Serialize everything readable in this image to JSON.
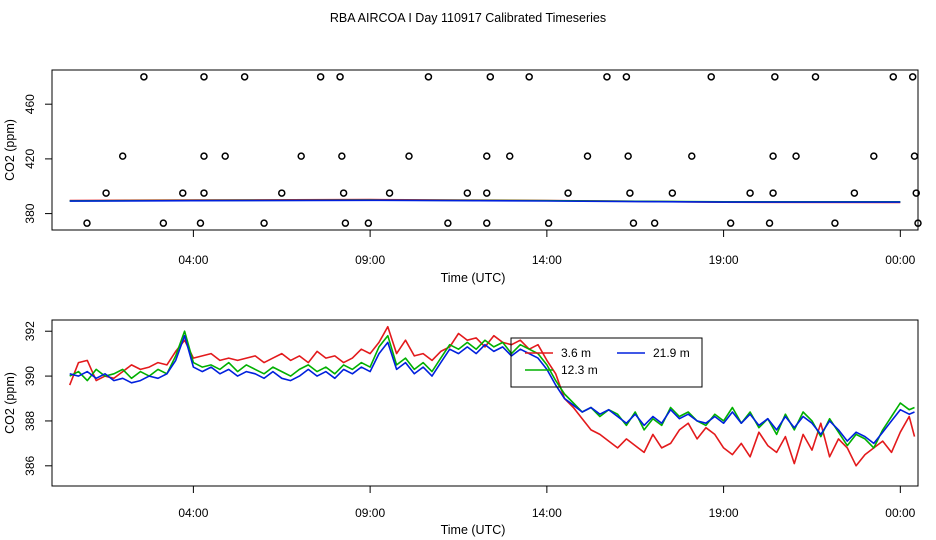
{
  "title": "RBA AIRCOA I  Day 110917  Calibrated Timeseries",
  "chart_data": [
    {
      "type": "scatter+line",
      "name": "upper-panel",
      "xlabel": "Time (UTC)",
      "ylabel": "CO2 (ppm)",
      "xlim": [
        0.0,
        24.5
      ],
      "ylim": [
        368,
        485
      ],
      "x_ticks": [
        {
          "value": 4,
          "label": "04:00"
        },
        {
          "value": 9,
          "label": "09:00"
        },
        {
          "value": 14,
          "label": "14:00"
        },
        {
          "value": 19,
          "label": "19:00"
        },
        {
          "value": 24,
          "label": "00:00"
        }
      ],
      "y_ticks": [
        {
          "value": 380,
          "label": "380"
        },
        {
          "value": 420,
          "label": "420"
        },
        {
          "value": 460,
          "label": "460"
        }
      ],
      "points": [
        {
          "x": 0.99,
          "y": 373
        },
        {
          "x": 1.53,
          "y": 395
        },
        {
          "x": 2.0,
          "y": 422
        },
        {
          "x": 2.6,
          "y": 480
        },
        {
          "x": 3.15,
          "y": 373
        },
        {
          "x": 3.7,
          "y": 395
        },
        {
          "x": 4.2,
          "y": 373
        },
        {
          "x": 4.3,
          "y": 395
        },
        {
          "x": 4.3,
          "y": 422
        },
        {
          "x": 4.3,
          "y": 480
        },
        {
          "x": 4.9,
          "y": 422
        },
        {
          "x": 5.45,
          "y": 480
        },
        {
          "x": 6.0,
          "y": 373
        },
        {
          "x": 6.5,
          "y": 395
        },
        {
          "x": 7.05,
          "y": 422
        },
        {
          "x": 7.6,
          "y": 480
        },
        {
          "x": 8.15,
          "y": 480
        },
        {
          "x": 8.2,
          "y": 422
        },
        {
          "x": 8.25,
          "y": 395
        },
        {
          "x": 8.3,
          "y": 373
        },
        {
          "x": 8.95,
          "y": 373
        },
        {
          "x": 9.55,
          "y": 395
        },
        {
          "x": 10.1,
          "y": 422
        },
        {
          "x": 10.65,
          "y": 480
        },
        {
          "x": 11.2,
          "y": 373
        },
        {
          "x": 11.75,
          "y": 395
        },
        {
          "x": 12.3,
          "y": 373
        },
        {
          "x": 12.3,
          "y": 395
        },
        {
          "x": 12.3,
          "y": 422
        },
        {
          "x": 12.4,
          "y": 480
        },
        {
          "x": 12.95,
          "y": 422
        },
        {
          "x": 13.5,
          "y": 480
        },
        {
          "x": 14.05,
          "y": 373
        },
        {
          "x": 14.6,
          "y": 395
        },
        {
          "x": 15.15,
          "y": 422
        },
        {
          "x": 15.7,
          "y": 480
        },
        {
          "x": 16.25,
          "y": 480
        },
        {
          "x": 16.3,
          "y": 422
        },
        {
          "x": 16.35,
          "y": 395
        },
        {
          "x": 16.45,
          "y": 373
        },
        {
          "x": 17.05,
          "y": 373
        },
        {
          "x": 17.55,
          "y": 395
        },
        {
          "x": 18.1,
          "y": 422
        },
        {
          "x": 18.65,
          "y": 480
        },
        {
          "x": 19.2,
          "y": 373
        },
        {
          "x": 19.75,
          "y": 395
        },
        {
          "x": 20.3,
          "y": 373
        },
        {
          "x": 20.4,
          "y": 422
        },
        {
          "x": 20.45,
          "y": 480
        },
        {
          "x": 20.4,
          "y": 395
        },
        {
          "x": 21.05,
          "y": 422
        },
        {
          "x": 21.6,
          "y": 480
        },
        {
          "x": 22.15,
          "y": 373
        },
        {
          "x": 22.7,
          "y": 395
        },
        {
          "x": 23.25,
          "y": 422
        },
        {
          "x": 23.8,
          "y": 480
        },
        {
          "x": 24.35,
          "y": 480
        },
        {
          "x": 24.4,
          "y": 422
        },
        {
          "x": 24.45,
          "y": 395
        },
        {
          "x": 24.5,
          "y": 373
        }
      ],
      "series": [
        {
          "name": "3.6 m",
          "color": "#e31a1c",
          "values_x": [
            0.5,
            4,
            9,
            14,
            19,
            24
          ],
          "values_y": [
            389.6,
            389.9,
            390.2,
            389.6,
            388.3,
            388.1
          ]
        },
        {
          "name": "12.3 m",
          "color": "#00b000",
          "values_x": [
            0.5,
            4,
            9,
            14,
            19,
            24
          ],
          "values_y": [
            389.3,
            389.6,
            389.9,
            389.4,
            388.6,
            388.6
          ]
        },
        {
          "name": "21.9 m",
          "color": "#0020dd",
          "values_x": [
            0.5,
            4,
            9,
            14,
            19,
            24
          ],
          "values_y": [
            389.1,
            389.4,
            389.7,
            389.2,
            388.4,
            388.4
          ]
        }
      ]
    },
    {
      "type": "line",
      "name": "lower-panel",
      "xlabel": "Time (UTC)",
      "ylabel": "CO2 (ppm)",
      "xlim": [
        0.0,
        24.5
      ],
      "ylim": [
        385.1,
        392.5
      ],
      "x_ticks": [
        {
          "value": 4,
          "label": "04:00"
        },
        {
          "value": 9,
          "label": "09:00"
        },
        {
          "value": 14,
          "label": "14:00"
        },
        {
          "value": 19,
          "label": "19:00"
        },
        {
          "value": 24,
          "label": "00:00"
        }
      ],
      "y_ticks": [
        {
          "value": 386,
          "label": "386"
        },
        {
          "value": 388,
          "label": "388"
        },
        {
          "value": 390,
          "label": "390"
        },
        {
          "value": 392,
          "label": "392"
        }
      ],
      "legend": {
        "position": "top-center",
        "entries": [
          {
            "label": "3.6 m",
            "color": "#e31a1c"
          },
          {
            "label": "21.9 m",
            "color": "#0020dd"
          },
          {
            "label": "12.3 m",
            "color": "#00b000"
          }
        ]
      },
      "series": [
        {
          "name": "3.6 m",
          "color": "#e31a1c",
          "x": [
            0.5,
            0.75,
            1.0,
            1.25,
            1.5,
            1.75,
            2.0,
            2.25,
            2.5,
            2.75,
            3.0,
            3.25,
            3.5,
            3.75,
            4.0,
            4.25,
            4.5,
            4.75,
            5.0,
            5.25,
            5.5,
            5.75,
            6.0,
            6.25,
            6.5,
            6.75,
            7.0,
            7.25,
            7.5,
            7.75,
            8.0,
            8.25,
            8.5,
            8.75,
            9.0,
            9.25,
            9.5,
            9.75,
            10.0,
            10.25,
            10.5,
            10.75,
            11.0,
            11.25,
            11.5,
            11.75,
            12.0,
            12.25,
            12.5,
            12.75,
            13.0,
            13.25,
            13.5,
            13.75,
            14.0,
            14.25,
            14.5,
            14.75,
            15.0,
            15.25,
            15.5,
            15.75,
            16.0,
            16.25,
            16.5,
            16.75,
            17.0,
            17.25,
            17.5,
            17.75,
            18.0,
            18.25,
            18.5,
            18.75,
            19.0,
            19.25,
            19.5,
            19.75,
            20.0,
            20.25,
            20.5,
            20.75,
            21.0,
            21.25,
            21.5,
            21.75,
            22.0,
            22.25,
            22.5,
            22.75,
            23.0,
            23.25,
            23.5,
            23.75,
            24.0,
            24.25,
            24.4
          ],
          "values": [
            389.6,
            390.6,
            390.7,
            389.8,
            390.0,
            389.9,
            390.2,
            390.5,
            390.3,
            390.4,
            390.6,
            390.5,
            391.1,
            391.6,
            390.8,
            390.9,
            391.0,
            390.7,
            390.8,
            390.7,
            390.8,
            390.9,
            390.6,
            390.8,
            391.0,
            390.7,
            390.9,
            390.6,
            391.1,
            390.8,
            390.9,
            390.6,
            390.8,
            391.2,
            391.0,
            391.5,
            392.2,
            391.0,
            391.6,
            390.9,
            391.0,
            390.7,
            391.1,
            391.3,
            391.9,
            391.6,
            391.7,
            391.3,
            391.8,
            391.5,
            391.4,
            391.6,
            391.2,
            391.4,
            390.7,
            390.1,
            389.0,
            388.6,
            388.1,
            387.6,
            387.4,
            387.1,
            386.8,
            387.2,
            386.9,
            386.6,
            387.4,
            386.8,
            387.0,
            387.6,
            387.9,
            387.2,
            387.7,
            387.4,
            386.8,
            386.5,
            387.0,
            386.4,
            387.5,
            386.9,
            386.6,
            387.3,
            386.1,
            387.4,
            386.7,
            387.9,
            386.4,
            387.2,
            386.8,
            386.0,
            386.5,
            386.8,
            387.1,
            386.6,
            387.5,
            388.2,
            387.3
          ]
        },
        {
          "name": "12.3 m",
          "color": "#00b000",
          "x": [
            0.5,
            0.75,
            1.0,
            1.25,
            1.5,
            1.75,
            2.0,
            2.25,
            2.5,
            2.75,
            3.0,
            3.25,
            3.5,
            3.75,
            4.0,
            4.25,
            4.5,
            4.75,
            5.0,
            5.25,
            5.5,
            5.75,
            6.0,
            6.25,
            6.5,
            6.75,
            7.0,
            7.25,
            7.5,
            7.75,
            8.0,
            8.25,
            8.5,
            8.75,
            9.0,
            9.25,
            9.5,
            9.75,
            10.0,
            10.25,
            10.5,
            10.75,
            11.0,
            11.25,
            11.5,
            11.75,
            12.0,
            12.25,
            12.5,
            12.75,
            13.0,
            13.25,
            13.5,
            13.75,
            14.0,
            14.25,
            14.5,
            14.75,
            15.0,
            15.25,
            15.5,
            15.75,
            16.0,
            16.25,
            16.5,
            16.75,
            17.0,
            17.25,
            17.5,
            17.75,
            18.0,
            18.25,
            18.5,
            18.75,
            19.0,
            19.25,
            19.5,
            19.75,
            20.0,
            20.25,
            20.5,
            20.75,
            21.0,
            21.25,
            21.5,
            21.75,
            22.0,
            22.25,
            22.5,
            22.75,
            23.0,
            23.25,
            23.5,
            23.75,
            24.0,
            24.25,
            24.4
          ],
          "values": [
            390.0,
            390.2,
            389.8,
            390.3,
            390.0,
            390.1,
            390.3,
            389.9,
            390.2,
            390.0,
            390.3,
            390.1,
            390.9,
            392.0,
            390.6,
            390.4,
            390.5,
            390.3,
            390.6,
            390.2,
            390.5,
            390.3,
            390.1,
            390.4,
            390.2,
            390.0,
            390.3,
            390.5,
            390.2,
            390.4,
            390.1,
            390.5,
            390.3,
            390.6,
            390.4,
            391.3,
            391.8,
            390.5,
            390.8,
            390.3,
            390.6,
            390.2,
            390.8,
            391.4,
            391.2,
            391.5,
            391.2,
            391.6,
            391.3,
            391.5,
            391.0,
            391.4,
            391.2,
            391.0,
            390.5,
            389.8,
            389.2,
            388.8,
            388.4,
            388.6,
            388.2,
            388.5,
            388.3,
            387.8,
            388.4,
            387.6,
            388.1,
            387.8,
            388.6,
            388.2,
            388.4,
            388.0,
            387.8,
            388.3,
            388.0,
            388.6,
            387.9,
            388.4,
            387.7,
            388.1,
            387.4,
            388.3,
            387.6,
            388.4,
            388.0,
            387.3,
            388.1,
            387.5,
            386.9,
            387.4,
            387.2,
            386.8,
            387.6,
            388.2,
            388.8,
            388.5,
            388.6
          ]
        },
        {
          "name": "21.9 m",
          "color": "#0020dd",
          "x": [
            0.5,
            0.75,
            1.0,
            1.25,
            1.5,
            1.75,
            2.0,
            2.25,
            2.5,
            2.75,
            3.0,
            3.25,
            3.5,
            3.75,
            4.0,
            4.25,
            4.5,
            4.75,
            5.0,
            5.25,
            5.5,
            5.75,
            6.0,
            6.25,
            6.5,
            6.75,
            7.0,
            7.25,
            7.5,
            7.75,
            8.0,
            8.25,
            8.5,
            8.75,
            9.0,
            9.25,
            9.5,
            9.75,
            10.0,
            10.25,
            10.5,
            10.75,
            11.0,
            11.25,
            11.5,
            11.75,
            12.0,
            12.25,
            12.5,
            12.75,
            13.0,
            13.25,
            13.5,
            13.75,
            14.0,
            14.25,
            14.5,
            14.75,
            15.0,
            15.25,
            15.5,
            15.75,
            16.0,
            16.25,
            16.5,
            16.75,
            17.0,
            17.25,
            17.5,
            17.75,
            18.0,
            18.25,
            18.5,
            18.75,
            19.0,
            19.25,
            19.5,
            19.75,
            20.0,
            20.25,
            20.5,
            20.75,
            21.0,
            21.25,
            21.5,
            21.75,
            22.0,
            22.25,
            22.5,
            22.75,
            23.0,
            23.25,
            23.5,
            23.75,
            24.0,
            24.25,
            24.4
          ],
          "values": [
            390.1,
            390.0,
            390.2,
            389.9,
            390.1,
            389.8,
            389.9,
            389.7,
            389.8,
            390.0,
            389.9,
            390.1,
            390.7,
            391.8,
            390.4,
            390.2,
            390.4,
            390.1,
            390.3,
            390.0,
            390.2,
            390.1,
            389.9,
            390.2,
            389.9,
            389.8,
            390.0,
            390.3,
            390.0,
            390.2,
            389.9,
            390.3,
            390.1,
            390.4,
            390.2,
            391.0,
            391.5,
            390.3,
            390.6,
            390.1,
            390.4,
            390.0,
            390.6,
            391.2,
            391.0,
            391.3,
            391.0,
            391.4,
            391.1,
            391.3,
            390.9,
            391.2,
            391.0,
            390.8,
            390.3,
            389.6,
            389.0,
            388.7,
            388.4,
            388.6,
            388.3,
            388.5,
            388.2,
            387.9,
            388.3,
            387.8,
            388.2,
            387.9,
            388.5,
            388.1,
            388.3,
            388.0,
            387.9,
            388.2,
            387.9,
            388.4,
            387.9,
            388.3,
            387.8,
            388.1,
            387.6,
            388.2,
            387.7,
            388.2,
            387.9,
            387.4,
            388.0,
            387.6,
            387.1,
            387.5,
            387.3,
            387.0,
            387.5,
            388.0,
            388.5,
            388.3,
            388.4
          ]
        }
      ]
    }
  ]
}
